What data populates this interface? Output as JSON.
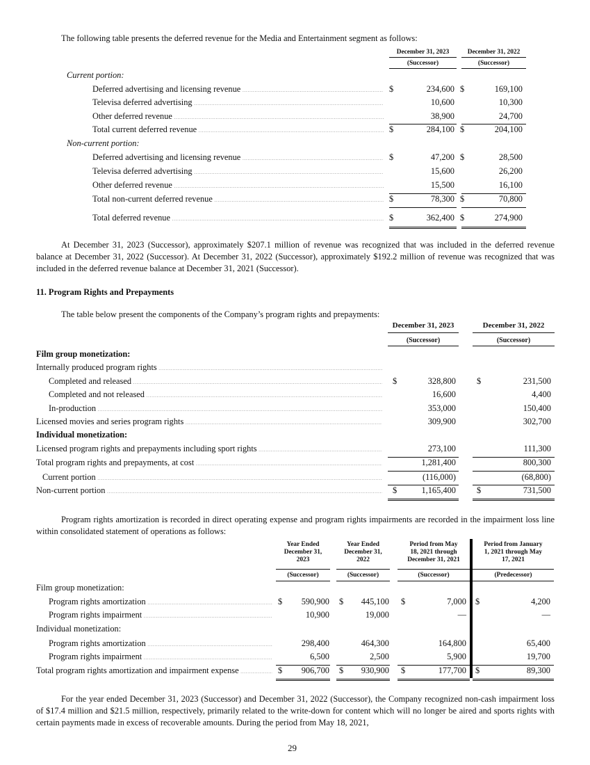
{
  "deferred": {
    "intro": "The following table presents the deferred revenue for the Media and Entertainment segment as follows:",
    "columns": [
      {
        "date": "December 31, 2023",
        "status": "(Successor)"
      },
      {
        "date": "December 31, 2022",
        "status": "(Successor)"
      }
    ],
    "rows": [
      {
        "label": "Current portion:",
        "type": "section"
      },
      {
        "label": "Deferred advertising and licensing revenue",
        "dollar": true,
        "values": [
          "234,600",
          "169,100"
        ]
      },
      {
        "label": "Televisa deferred advertising",
        "values": [
          "10,600",
          "10,300"
        ]
      },
      {
        "label": "Other deferred revenue",
        "values": [
          "38,900",
          "24,700"
        ]
      },
      {
        "label": "Total current deferred revenue",
        "dollar": true,
        "values": [
          "284,100",
          "204,100"
        ]
      },
      {
        "label": "Non-current portion:",
        "type": "section"
      },
      {
        "label": "Deferred advertising and licensing revenue",
        "dollar": true,
        "values": [
          "47,200",
          "28,500"
        ]
      },
      {
        "label": "Televisa deferred advertising",
        "values": [
          "15,600",
          "26,200"
        ]
      },
      {
        "label": "Other deferred revenue",
        "values": [
          "15,500",
          "16,100"
        ]
      },
      {
        "label": "Total non-current deferred revenue",
        "dollar": true,
        "values": [
          "78,300",
          "70,800"
        ]
      },
      {
        "label": "Total deferred revenue",
        "dollar": true,
        "values": [
          "362,400",
          "274,900"
        ]
      }
    ],
    "paragraph": "At December 31, 2023 (Successor), approximately $207.1 million of revenue was recognized that was included in the deferred revenue balance at December 31, 2022 (Successor). At December 31, 2022 (Successor), approximately $192.2 million of revenue was recognized that was included in the deferred revenue balance at December 31, 2021 (Successor)."
  },
  "program_rights": {
    "heading": "11. Program Rights and Prepayments",
    "intro": "The table below present the components of the Company’s program rights and prepayments:",
    "columns": [
      {
        "date": "December 31, 2023",
        "status": "(Successor)"
      },
      {
        "date": "December 31, 2022",
        "status": "(Successor)"
      }
    ],
    "rows": [
      {
        "label": "Film group monetization:",
        "type": "bold"
      },
      {
        "label": "Internally produced program rights",
        "values": [
          "",
          ""
        ]
      },
      {
        "label": "Completed and released",
        "indent": true,
        "dollar": true,
        "values": [
          "328,800",
          "231,500"
        ]
      },
      {
        "label": "Completed and not released",
        "indent": true,
        "values": [
          "16,600",
          "4,400"
        ]
      },
      {
        "label": "In-production",
        "indent": true,
        "values": [
          "353,000",
          "150,400"
        ]
      },
      {
        "label": "Licensed  movies and series program rights",
        "values": [
          "309,900",
          "302,700"
        ]
      },
      {
        "label": "Individual monetization:",
        "type": "bold"
      },
      {
        "label": "Licensed program rights and prepayments including sport rights",
        "values": [
          "273,100",
          "111,300"
        ]
      },
      {
        "label": "Total program rights and prepayments, at cost",
        "values": [
          "1,281,400",
          "800,300"
        ]
      },
      {
        "label": "Current portion",
        "small_indent": true,
        "values": [
          "(116,000)",
          "(68,800)"
        ]
      },
      {
        "label": "Non-current portion",
        "dollar": true,
        "values": [
          "1,165,400",
          "731,500"
        ]
      }
    ],
    "paragraph": "Program rights amortization is recorded in direct operating expense and program rights impairments are recorded in the impairment loss line within consolidated statement of operations as follows:"
  },
  "amortization": {
    "columns": [
      {
        "period": "Year Ended December 31, 2023",
        "lines": [
          "Year Ended",
          "December 31,",
          "2023"
        ],
        "status": "(Successor)"
      },
      {
        "period": "Year Ended December 31, 2022",
        "lines": [
          "Year Ended",
          "December 31,",
          "2022"
        ],
        "status": "(Successor)"
      },
      {
        "period": "Period from May 18, 2021 through December 31, 2021",
        "lines": [
          "Period from May",
          "18, 2021 through",
          "December 31, 2021"
        ],
        "status": "(Successor)"
      },
      {
        "period": "Period from January 1, 2021 through May 17, 2021",
        "lines": [
          "Period from January",
          "1, 2021 through May",
          "17, 2021"
        ],
        "status": "(Predecessor)"
      }
    ],
    "rows": [
      {
        "label": "Film group monetization:",
        "type": "section-plain"
      },
      {
        "label": "Program rights amortization",
        "indent": true,
        "dollar": true,
        "values": [
          "590,900",
          "445,100",
          "7,000",
          "4,200"
        ]
      },
      {
        "label": "Program rights impairment",
        "indent": true,
        "values": [
          "10,900",
          "19,000",
          "—",
          "—"
        ]
      },
      {
        "label": "Individual monetization:",
        "type": "section-plain"
      },
      {
        "label": "Program rights amortization",
        "indent": true,
        "values": [
          "298,400",
          "464,300",
          "164,800",
          "65,400"
        ]
      },
      {
        "label": "Program rights impairment",
        "indent": true,
        "values": [
          "6,500",
          "2,500",
          "5,900",
          "19,700"
        ]
      },
      {
        "label": "Total program rights amortization and impairment expense",
        "dollar": true,
        "values": [
          "906,700",
          "930,900",
          "177,700",
          "89,300"
        ]
      }
    ],
    "paragraph": "For the year ended December 31, 2023 (Successor) and December 31, 2022 (Successor), the Company recognized non-cash impairment loss of $17.4 million and $21.5 million, respectively, primarily related to the write-down for content which will no longer be aired and sports rights with certain payments made in excess of recoverable amounts. During the period from May 18, 2021,"
  },
  "currency_symbol": "$",
  "page_number": "29"
}
